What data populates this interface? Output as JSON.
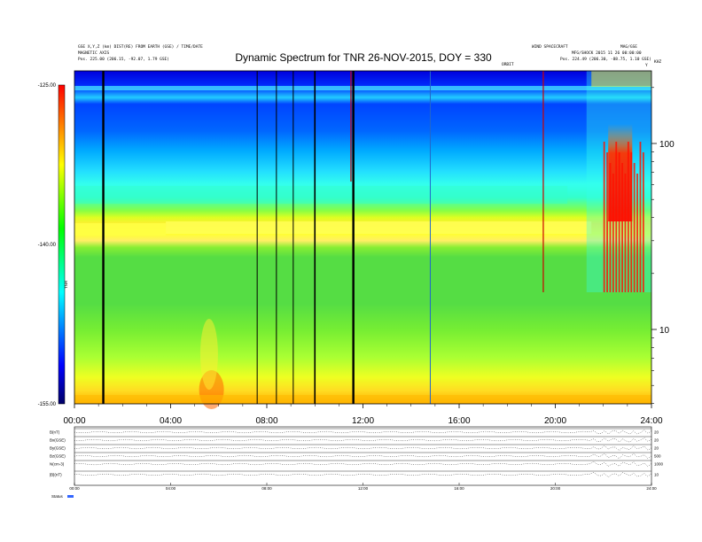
{
  "header": {
    "title": "Dynamic Spectrum for TNR 26-NOV-2015, DOY = 330",
    "left_line1": "GSE X,Y,Z (km) DIST(RE) FROM EARTH (GSE) / TIME/DATE",
    "left_line2": "MAGNETIC AXIS",
    "left_line3": "Pos.     225.00 (206.15, -92.07, 1.79 GSE)",
    "right_top": "WIND SPACECRAFT",
    "right_mid": "MFG/SHOCK 2015 11 26 00:00:00",
    "right_line3": "Pos.     224.49 (206.30, -88.75, 1.10 GSE)",
    "small_marker_1": "MAG/GSE",
    "small_marker_2": "ORBIT",
    "small_marker_3": "Y",
    "small_marker_4": "KHZ"
  },
  "chart_data": {
    "type": "heatmap",
    "title": "Dynamic Spectrum for TNR 26-NOV-2015, DOY = 330",
    "x_ticks": [
      "00:00",
      "04:00",
      "08:00",
      "12:00",
      "16:00",
      "20:00",
      "24:00"
    ],
    "x_range_hours": [
      0,
      24
    ],
    "y_scale": "log",
    "y_ticks": [
      "100",
      "10"
    ],
    "y_unit": "KHZ",
    "colorbar": {
      "ticks": [
        "-125.00",
        "-140.00",
        "-155.00"
      ],
      "label": "TNR",
      "range": [
        -155,
        -125
      ],
      "colors": [
        "#000066",
        "#0000ff",
        "#00ffff",
        "#00ff00",
        "#ffff00",
        "#ff0000"
      ]
    },
    "data_gap_lines_hours": [
      1.2,
      7.6,
      8.4,
      9.1,
      10.0,
      11.6,
      14.8
    ],
    "red_line_hours": [
      11.5,
      19.5
    ],
    "burst_start_hours": 21.5,
    "burst_end_hours": 24.0
  },
  "bottom_panel": {
    "row_labels": [
      "B(nT)",
      "Bx(GSE)",
      "By(GSE)",
      "Bz(GSE)",
      "N(cm-3)",
      "|B|(nT)"
    ],
    "right_values": [
      "20",
      "20",
      "20",
      "500",
      "1000",
      "10"
    ],
    "time_ticks": [
      "00:00",
      "04:00",
      "08:00",
      "12:00",
      "16:00",
      "20:00",
      "24:00"
    ],
    "status_label": "Status"
  }
}
